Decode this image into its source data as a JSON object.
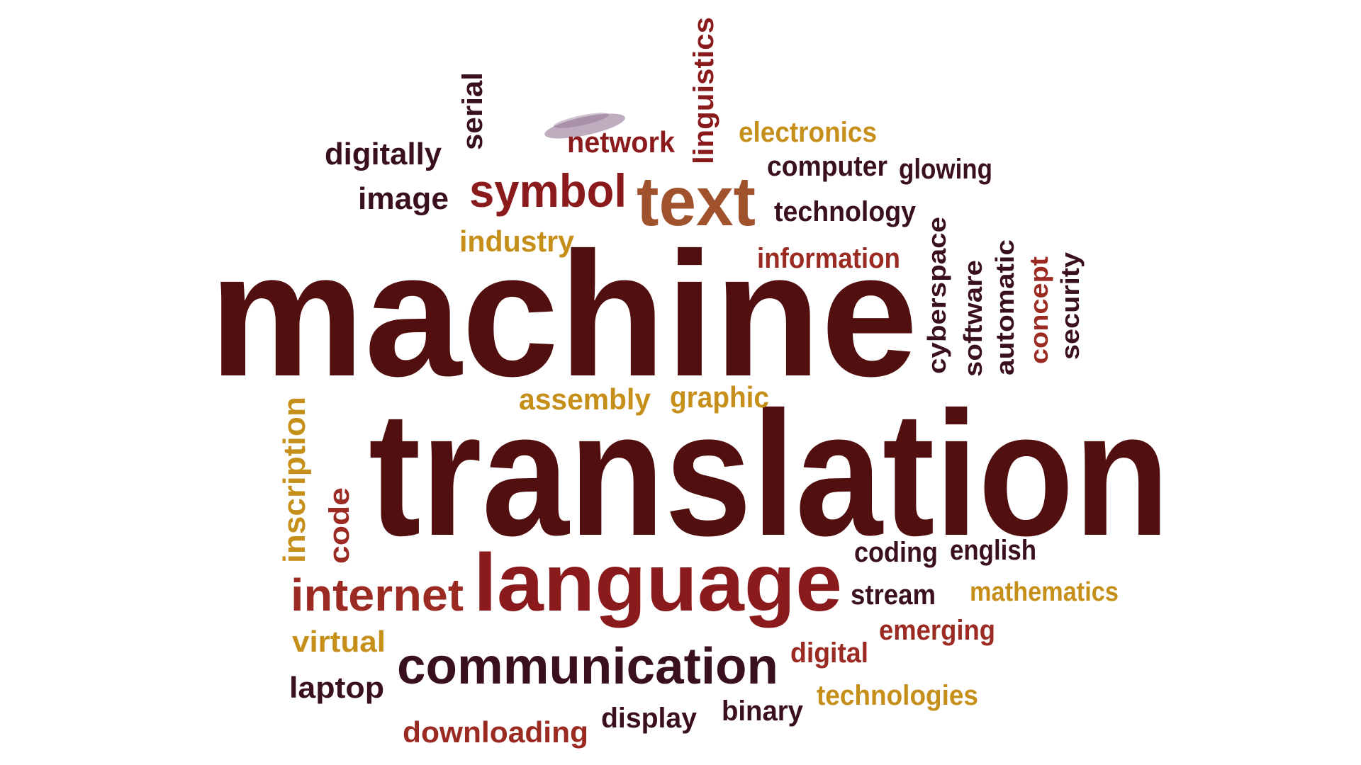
{
  "colors": {
    "dark_maroon": "#520f0f",
    "plum": "#3a1020",
    "red": "#8b1a1c",
    "brown": "#a0522d",
    "gold": "#c58f1a",
    "rust": "#9a2a22"
  },
  "words": {
    "machine": "machine",
    "translation": "translation",
    "language": "language",
    "communication": "communication",
    "text": "text",
    "symbol": "symbol",
    "internet": "internet",
    "digitally": "digitally",
    "serial": "serial",
    "network": "network",
    "linguistics": "linguistics",
    "electronics": "electronics",
    "computer": "computer",
    "glowing": "glowing",
    "image": "image",
    "technology": "technology",
    "industry": "industry",
    "information": "information",
    "cyberspace": "cyberspace",
    "software": "software",
    "automatic": "automatic",
    "concept": "concept",
    "security": "security",
    "assembly": "assembly",
    "graphic": "graphic",
    "inscription": "inscription",
    "code": "code",
    "coding": "coding",
    "english": "english",
    "stream": "stream",
    "mathematics": "mathematics",
    "virtual": "virtual",
    "emerging": "emerging",
    "digital": "digital",
    "laptop": "laptop",
    "technologies": "technologies",
    "binary": "binary",
    "display": "display",
    "downloading": "downloading"
  }
}
